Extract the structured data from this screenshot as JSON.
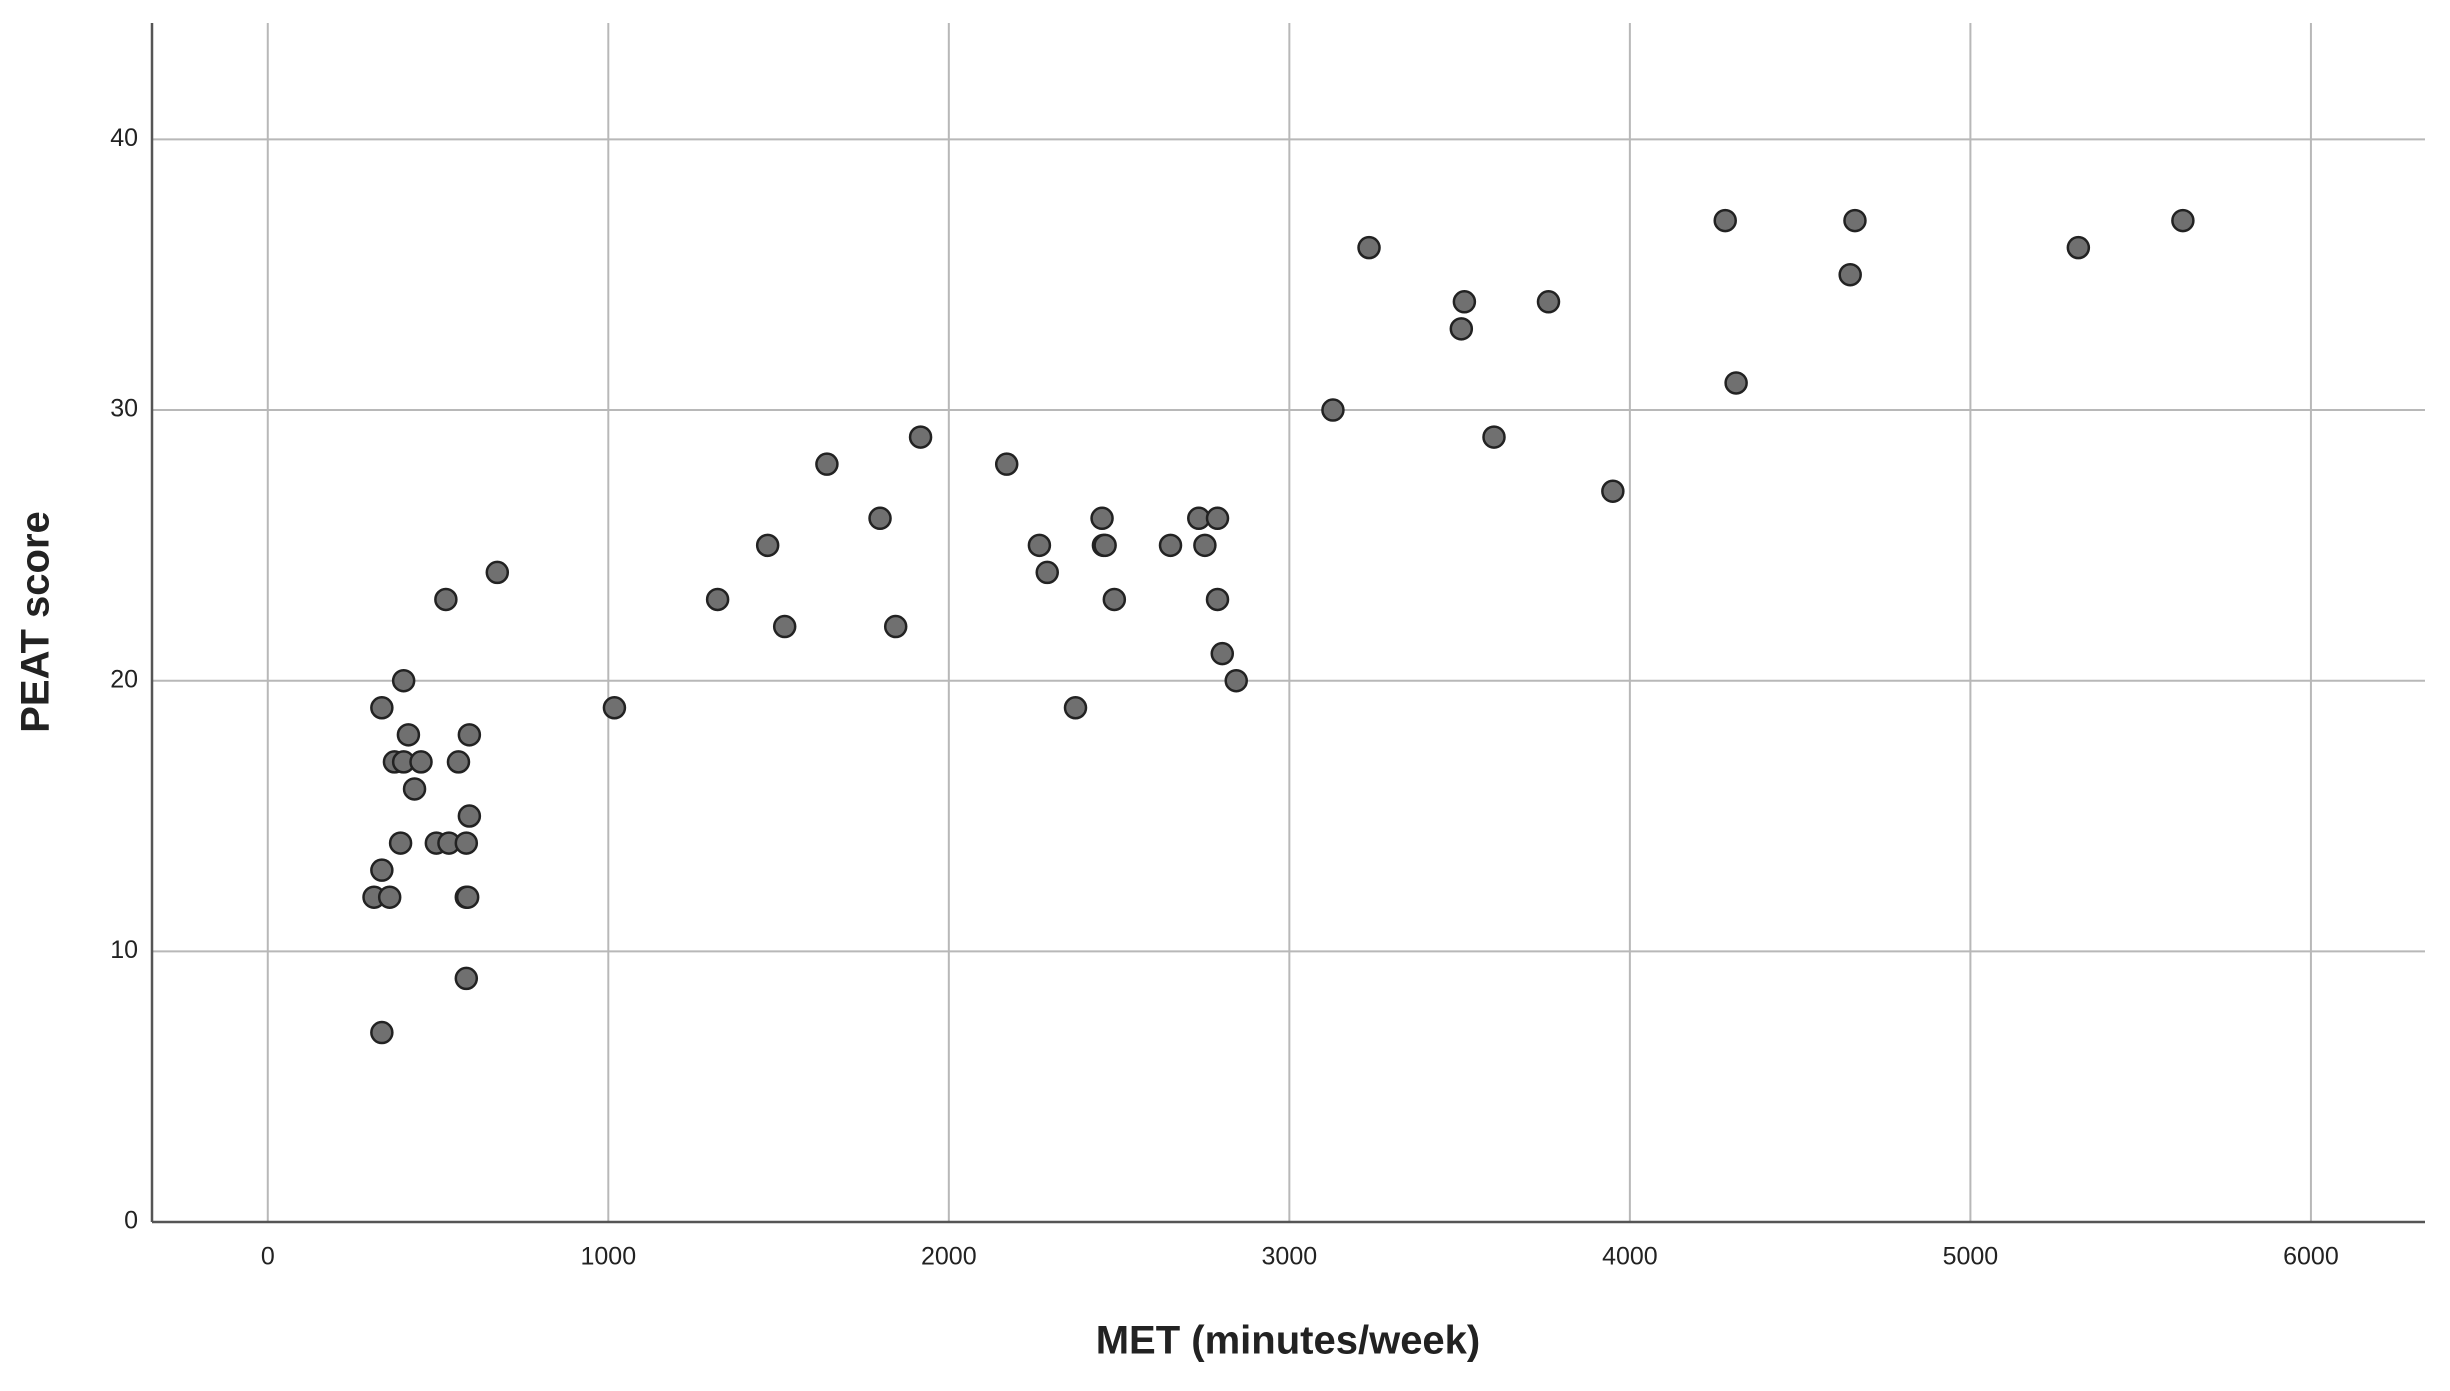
{
  "chart_data": {
    "type": "scatter",
    "x_label": "MET (minutes/week)",
    "y_label": "PEAT score",
    "x": [
      312,
      335,
      358,
      335,
      372,
      399,
      413,
      399,
      450,
      431,
      390,
      335,
      523,
      495,
      532,
      560,
      592,
      592,
      583,
      583,
      587,
      583,
      674,
      1018,
      1321,
      1468,
      1518,
      1642,
      1798,
      1844,
      1917,
      2170,
      2266,
      2289,
      2372,
      2450,
      2454,
      2459,
      2486,
      2651,
      2734,
      2752,
      2789,
      2789,
      2803,
      2844,
      3128,
      3234,
      3505,
      3514,
      3601,
      3761,
      3950,
      4280,
      4312,
      4647,
      4661,
      5317,
      5624
    ],
    "values": [
      12,
      13,
      12,
      19,
      17,
      20,
      18,
      17,
      17,
      16,
      14,
      7,
      23,
      14,
      14,
      17,
      18,
      15,
      14,
      12,
      12,
      9,
      24,
      19,
      23,
      25,
      22,
      28,
      26,
      22,
      29,
      28,
      25,
      24,
      19,
      26,
      25,
      25,
      23,
      25,
      26,
      25,
      26,
      23,
      21,
      20,
      30,
      36,
      33,
      34,
      29,
      34,
      27,
      37,
      31,
      35,
      37,
      36,
      37
    ],
    "color": "#707070",
    "xlim": [
      -340,
      6335
    ],
    "ylim": [
      0,
      44.3
    ],
    "xticks": [
      0,
      1000,
      2000,
      3000,
      4000,
      5000,
      6000
    ],
    "yticks": [
      0,
      10,
      20,
      30,
      40
    ],
    "grid": true
  }
}
